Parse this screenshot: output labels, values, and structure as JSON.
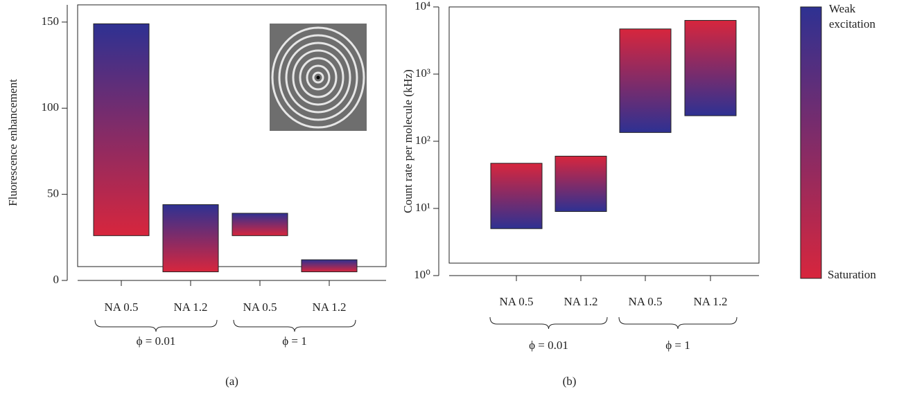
{
  "chart_data": [
    {
      "type": "range-bar",
      "panel_label": "(a)",
      "ylabel": "Fluorescence enhancement",
      "yscale": "linear",
      "ylim": [
        0,
        160
      ],
      "yticks": [
        0,
        50,
        100,
        150
      ],
      "groups": [
        {
          "label": "ϕ = 0.01",
          "categories": [
            "NA 0.5",
            "NA 1.2"
          ]
        },
        {
          "label": "ϕ = 1",
          "categories": [
            "NA 0.5",
            "NA 1.2"
          ]
        }
      ],
      "weak_excitation": [
        149,
        44,
        39,
        12
      ],
      "saturation": [
        26,
        5,
        26,
        5
      ]
    },
    {
      "type": "range-bar",
      "panel_label": "(b)",
      "ylabel": "Count rate per molecule (kHz)",
      "yscale": "log",
      "ylim": [
        1,
        10000
      ],
      "yticks": [
        {
          "value": 1,
          "label": "10⁰"
        },
        {
          "value": 10,
          "label": "10¹"
        },
        {
          "value": 100,
          "label": "10²"
        },
        {
          "value": 1000,
          "label": "10³"
        },
        {
          "value": 10000,
          "label": "10⁴"
        }
      ],
      "groups": [
        {
          "label": "ϕ = 0.01",
          "categories": [
            "NA 0.5",
            "NA 1.2"
          ]
        },
        {
          "label": "ϕ = 1",
          "categories": [
            "NA 0.5",
            "NA 1.2"
          ]
        }
      ],
      "weak_excitation": [
        5,
        9,
        135,
        240
      ],
      "saturation": [
        47,
        60,
        4700,
        6300
      ]
    }
  ],
  "colorbar": {
    "top_label": "Weak excitation",
    "bottom_label": "Saturation",
    "top_color": "#2e3192",
    "bottom_color": "#d7263d"
  }
}
